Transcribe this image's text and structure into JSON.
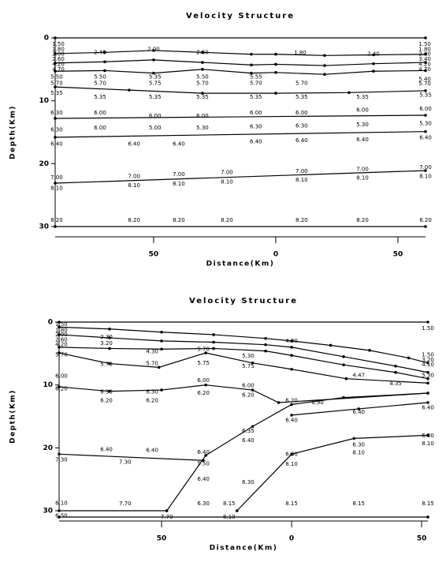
{
  "chart_data": [
    {
      "type": "line",
      "title": "Velocity Structure",
      "x_label": "Distance(Km)",
      "y_label": "Depth(Km)",
      "y_inverted": true,
      "markers": true,
      "xlim": [
        -90.3,
        61.3
      ],
      "xticks": [
        {
          "value": -50,
          "label": "50"
        },
        0,
        50
      ],
      "ylim": [
        0,
        30
      ],
      "yticks": [
        0,
        10,
        20,
        30
      ],
      "series": [
        {
          "color": "#000000",
          "x": [
            -90.3,
            61.3
          ],
          "values": [
            0,
            0
          ]
        },
        {
          "color": "#000000",
          "x": [
            -90.3,
            -70,
            -50,
            -30,
            -10,
            0,
            20,
            40,
            61.3
          ],
          "values": [
            2.5,
            2.3,
            2.0,
            2.3,
            2.6,
            2.6,
            2.8,
            2.7,
            2.6
          ]
        },
        {
          "color": "#000000",
          "x": [
            -90.3,
            -70,
            -50,
            -30,
            -10,
            0,
            20,
            40,
            61.3
          ],
          "values": [
            4.0,
            3.8,
            3.5,
            3.9,
            4.3,
            4.2,
            4.4,
            4.1,
            3.9
          ]
        },
        {
          "color": "#000000",
          "x": [
            -90.3,
            -70,
            -50,
            -30,
            -10,
            0,
            20,
            40,
            61.3
          ],
          "values": [
            5.3,
            5.2,
            5.6,
            5.0,
            5.6,
            5.5,
            5.8,
            5.3,
            5.2
          ]
        },
        {
          "color": "#000000",
          "x": [
            -90.3,
            -60,
            -30,
            0,
            30,
            61.3
          ],
          "values": [
            7.8,
            8.3,
            8.8,
            8.8,
            8.7,
            8.4
          ]
        },
        {
          "color": "#000000",
          "x": [
            -90.3,
            61.3
          ],
          "values": [
            12.8,
            12.3
          ]
        },
        {
          "color": "#000000",
          "x": [
            -90.3,
            61.3
          ],
          "values": [
            15.8,
            14.9
          ]
        },
        {
          "color": "#000000",
          "x": [
            -90.3,
            61.3
          ],
          "values": [
            23.1,
            21.1
          ]
        },
        {
          "color": "#000000",
          "x": [
            -90.3,
            61.3
          ],
          "values": [
            30,
            30
          ]
        }
      ],
      "annotations": [
        {
          "x": -89,
          "y": 1.0,
          "text": "1.50"
        },
        {
          "x": -89,
          "y": 1.8,
          "text": "1.80"
        },
        {
          "x": -89,
          "y": 2.6,
          "text": "2.00"
        },
        {
          "x": -89,
          "y": 3.4,
          "text": "2.60"
        },
        {
          "x": -89,
          "y": 4.2,
          "text": "4.20"
        },
        {
          "x": -89,
          "y": 5.0,
          "text": "4.70"
        },
        {
          "x": 61,
          "y": 1.0,
          "text": "1.50"
        },
        {
          "x": 61,
          "y": 1.8,
          "text": "1.80"
        },
        {
          "x": 61,
          "y": 2.6,
          "text": "2.00"
        },
        {
          "x": 61,
          "y": 3.4,
          "text": "3.40"
        },
        {
          "x": 61,
          "y": 4.2,
          "text": "4.20"
        },
        {
          "x": 61,
          "y": 5.0,
          "text": "4.70"
        },
        {
          "x": 61,
          "y": 6.6,
          "text": "5.40"
        },
        {
          "x": 61,
          "y": 7.3,
          "text": "5.70"
        },
        {
          "x": -50,
          "y": 1.8,
          "text": "2.00"
        },
        {
          "x": -72,
          "y": 2.3,
          "text": "2.40"
        },
        {
          "x": -30,
          "y": 2.3,
          "text": "2.60"
        },
        {
          "x": 10,
          "y": 2.4,
          "text": "1.80"
        },
        {
          "x": 40,
          "y": 2.6,
          "text": "2.40"
        },
        {
          "x": -89.7,
          "y": 6.2,
          "text": "5.50"
        },
        {
          "x": -71.9,
          "y": 6.2,
          "text": "5.50"
        },
        {
          "x": -49.4,
          "y": 6.2,
          "text": "5.35"
        },
        {
          "x": -30,
          "y": 6.2,
          "text": "5.50"
        },
        {
          "x": -8.1,
          "y": 6.2,
          "text": "5.55"
        },
        {
          "x": -89.7,
          "y": 7.2,
          "text": "5.70"
        },
        {
          "x": -71.9,
          "y": 7.2,
          "text": "5.70"
        },
        {
          "x": -49.4,
          "y": 7.2,
          "text": "5.75"
        },
        {
          "x": -30,
          "y": 7.2,
          "text": "5.70"
        },
        {
          "x": -8.1,
          "y": 7.2,
          "text": "5.70"
        },
        {
          "x": 10.6,
          "y": 7.2,
          "text": "5.70"
        },
        {
          "x": -89.7,
          "y": 8.8,
          "text": "5.35"
        },
        {
          "x": -71.9,
          "y": 9.4,
          "text": "5.35"
        },
        {
          "x": -49.4,
          "y": 9.4,
          "text": "5.35"
        },
        {
          "x": -30,
          "y": 9.4,
          "text": "5.35"
        },
        {
          "x": -8.1,
          "y": 9.4,
          "text": "5.35"
        },
        {
          "x": 10.6,
          "y": 9.4,
          "text": "5.35"
        },
        {
          "x": 35.5,
          "y": 9.4,
          "text": "5.35"
        },
        {
          "x": 61.3,
          "y": 9.1,
          "text": "5.35"
        },
        {
          "x": -89.7,
          "y": 11.9,
          "text": "6.30"
        },
        {
          "x": -71.9,
          "y": 11.9,
          "text": "6.00"
        },
        {
          "x": -49.4,
          "y": 12.4,
          "text": "6.00"
        },
        {
          "x": -30,
          "y": 12.4,
          "text": "6.00"
        },
        {
          "x": -8.1,
          "y": 11.9,
          "text": "6.00"
        },
        {
          "x": 10.6,
          "y": 11.9,
          "text": "6.00"
        },
        {
          "x": 35.5,
          "y": 11.5,
          "text": "6.00"
        },
        {
          "x": 61.3,
          "y": 11.3,
          "text": "6.00"
        },
        {
          "x": -89.7,
          "y": 14.6,
          "text": "6.30"
        },
        {
          "x": -71.9,
          "y": 14.3,
          "text": "6.00"
        },
        {
          "x": -49.4,
          "y": 14.3,
          "text": "5.00"
        },
        {
          "x": -30,
          "y": 14.3,
          "text": "5.30"
        },
        {
          "x": -8.1,
          "y": 14.1,
          "text": "6.30"
        },
        {
          "x": 10.6,
          "y": 14.0,
          "text": "6.30"
        },
        {
          "x": 35.5,
          "y": 13.8,
          "text": "5.30"
        },
        {
          "x": 61.3,
          "y": 13.6,
          "text": "5.30"
        },
        {
          "x": -89.7,
          "y": 16.9,
          "text": "6.40"
        },
        {
          "x": -58,
          "y": 16.9,
          "text": "6.40"
        },
        {
          "x": -39.7,
          "y": 16.9,
          "text": "6.40"
        },
        {
          "x": -8.1,
          "y": 16.5,
          "text": "6.40"
        },
        {
          "x": 10.6,
          "y": 16.3,
          "text": "6.40"
        },
        {
          "x": 35.5,
          "y": 16.2,
          "text": "6.40"
        },
        {
          "x": 61.3,
          "y": 15.9,
          "text": "6.40"
        },
        {
          "x": -89.7,
          "y": 22.2,
          "text": "7.00"
        },
        {
          "x": -58,
          "y": 22.0,
          "text": "7.00"
        },
        {
          "x": -39.7,
          "y": 21.7,
          "text": "7.00"
        },
        {
          "x": -20,
          "y": 21.4,
          "text": "7.00"
        },
        {
          "x": 10.6,
          "y": 21.2,
          "text": "7.00"
        },
        {
          "x": 35.5,
          "y": 20.9,
          "text": "7.00"
        },
        {
          "x": 61.3,
          "y": 20.6,
          "text": "7.00"
        },
        {
          "x": -89.7,
          "y": 23.9,
          "text": "8.10"
        },
        {
          "x": -58,
          "y": 23.5,
          "text": "8.10"
        },
        {
          "x": -39.7,
          "y": 23.2,
          "text": "8.10"
        },
        {
          "x": -20,
          "y": 22.9,
          "text": "8.10"
        },
        {
          "x": 10.6,
          "y": 22.6,
          "text": "8.10"
        },
        {
          "x": 35.5,
          "y": 22.3,
          "text": "8.10"
        },
        {
          "x": 61.3,
          "y": 22.0,
          "text": "8.10"
        },
        {
          "x": -89.7,
          "y": 29.0,
          "text": "8.20"
        },
        {
          "x": -58,
          "y": 29.0,
          "text": "8.20"
        },
        {
          "x": -39.7,
          "y": 29.0,
          "text": "8.20"
        },
        {
          "x": -20,
          "y": 29.0,
          "text": "8.20"
        },
        {
          "x": 10.6,
          "y": 29.0,
          "text": "8.20"
        },
        {
          "x": 35.5,
          "y": 29.0,
          "text": "8.20"
        },
        {
          "x": 61.3,
          "y": 29.0,
          "text": "8.20"
        }
      ]
    },
    {
      "type": "line",
      "title": "Velocity Structure",
      "x_label": "Distance(Km)",
      "y_label": "Depth(Km)",
      "y_inverted": true,
      "markers": true,
      "xlim": [
        -89.4,
        52.4
      ],
      "xticks": [
        {
          "value": -50,
          "label": "50"
        },
        0,
        50
      ],
      "ylim": [
        0,
        30
      ],
      "yticks": [
        0,
        10,
        20,
        30
      ],
      "series": [
        {
          "color": "#000000",
          "x": [
            -89.4,
            52.4
          ],
          "values": [
            0,
            0
          ]
        },
        {
          "color": "#000000",
          "x": [
            -89.4,
            -70,
            -50,
            -30,
            -10,
            0,
            15,
            30,
            45,
            52.4
          ],
          "values": [
            0.8,
            1.1,
            1.6,
            2.0,
            2.6,
            3.0,
            3.7,
            4.5,
            5.7,
            6.5
          ]
        },
        {
          "color": "#000000",
          "x": [
            -89.4,
            -70,
            -50,
            -30,
            -10,
            0,
            20,
            40,
            52.4
          ],
          "values": [
            2.0,
            2.5,
            3.0,
            3.2,
            3.6,
            4.0,
            5.5,
            7.0,
            8.0
          ]
        },
        {
          "color": "#000000",
          "x": [
            -89.4,
            -70,
            -50,
            -30,
            -10,
            0,
            20,
            40,
            52.4
          ],
          "values": [
            4.0,
            4.2,
            4.3,
            4.2,
            4.6,
            5.3,
            6.8,
            8.0,
            9.0
          ]
        },
        {
          "color": "#000000",
          "x": [
            -89.4,
            -70,
            -51,
            -33,
            -15,
            0,
            21,
            52.4
          ],
          "values": [
            4.9,
            6.6,
            7.2,
            4.9,
            6.5,
            7.5,
            9.0,
            9.7
          ]
        },
        {
          "color": "#000000",
          "x": [
            -89.4,
            -70,
            -50,
            -33,
            -15,
            -5,
            52.4
          ],
          "values": [
            10.3,
            11.0,
            10.8,
            10.0,
            10.8,
            12.8,
            11.3
          ]
        },
        {
          "color": "#000000",
          "x": [
            -48,
            -33,
            -15,
            0,
            20,
            52.4
          ],
          "values": [
            30,
            21.2,
            16.6,
            13.1,
            12.0,
            11.3
          ]
        },
        {
          "color": "#000000",
          "x": [
            0,
            25.8,
            52.4
          ],
          "values": [
            14.8,
            13.8,
            12.8
          ]
        },
        {
          "color": "#000000",
          "x": [
            -21,
            0,
            24,
            52.4
          ],
          "values": [
            30,
            21,
            18.5,
            18
          ]
        },
        {
          "color": "#000000",
          "x": [
            -89.4,
            -34
          ],
          "values": [
            21,
            22
          ]
        },
        {
          "color": "#000000",
          "x": [
            -89.4,
            -48
          ],
          "values": [
            30,
            30
          ]
        },
        {
          "color": "#000000",
          "x": [
            -89.4,
            52.4
          ],
          "values": [
            31,
            31
          ]
        }
      ],
      "annotations": [
        {
          "x": -88.5,
          "y": 0.4,
          "text": "1.50"
        },
        {
          "x": 52.4,
          "y": 1.0,
          "text": "1.50"
        },
        {
          "x": -88.5,
          "y": 1.3,
          "text": "1.80"
        },
        {
          "x": -88.5,
          "y": 2.0,
          "text": "2.00"
        },
        {
          "x": -88.5,
          "y": 2.8,
          "text": "2.60"
        },
        {
          "x": -88.5,
          "y": 3.6,
          "text": "4.20"
        },
        {
          "x": -88.5,
          "y": 5.2,
          "text": "5.70"
        },
        {
          "x": 52.4,
          "y": 5.2,
          "text": "1.50"
        },
        {
          "x": 52.4,
          "y": 6.0,
          "text": "3.20"
        },
        {
          "x": 52.4,
          "y": 6.8,
          "text": "4.10"
        },
        {
          "x": 52.4,
          "y": 8.5,
          "text": "5.30"
        },
        {
          "x": -71.2,
          "y": 2.4,
          "text": "2.30"
        },
        {
          "x": -71.2,
          "y": 3.4,
          "text": "3.20"
        },
        {
          "x": 0,
          "y": 3.0,
          "text": "4.00"
        },
        {
          "x": -71.2,
          "y": 6.7,
          "text": "5.70"
        },
        {
          "x": -53.6,
          "y": 6.6,
          "text": "5.70"
        },
        {
          "x": -33.9,
          "y": 6.5,
          "text": "5.75"
        },
        {
          "x": -16.7,
          "y": 7.0,
          "text": "5.75"
        },
        {
          "x": -53.6,
          "y": 4.7,
          "text": "4.30"
        },
        {
          "x": -33.9,
          "y": 4.3,
          "text": "5.70"
        },
        {
          "x": -16.7,
          "y": 5.4,
          "text": "5.30"
        },
        {
          "x": 25.8,
          "y": 8.5,
          "text": "4.47"
        },
        {
          "x": 40,
          "y": 9.8,
          "text": "4.35"
        },
        {
          "x": -88.5,
          "y": 8.6,
          "text": "6.00"
        },
        {
          "x": -88.5,
          "y": 10.6,
          "text": "6.20"
        },
        {
          "x": -71.2,
          "y": 11.1,
          "text": "6.30"
        },
        {
          "x": -71.2,
          "y": 12.5,
          "text": "6.20"
        },
        {
          "x": -53.6,
          "y": 11.1,
          "text": "6.30"
        },
        {
          "x": -53.6,
          "y": 12.5,
          "text": "6.20"
        },
        {
          "x": -33.9,
          "y": 9.3,
          "text": "6.00"
        },
        {
          "x": -33.9,
          "y": 11.3,
          "text": "6.20"
        },
        {
          "x": -16.7,
          "y": 10.1,
          "text": "6.00"
        },
        {
          "x": -16.7,
          "y": 11.6,
          "text": "6.20"
        },
        {
          "x": 0,
          "y": 12.5,
          "text": "6.20"
        },
        {
          "x": 10,
          "y": 12.8,
          "text": "6.90"
        },
        {
          "x": -71.2,
          "y": 20.3,
          "text": "6.40"
        },
        {
          "x": -53.6,
          "y": 20.4,
          "text": "6.40"
        },
        {
          "x": -33.9,
          "y": 20.7,
          "text": "6.40"
        },
        {
          "x": -16.7,
          "y": 18.8,
          "text": "6.40"
        },
        {
          "x": 0,
          "y": 15.6,
          "text": "6.40"
        },
        {
          "x": 25.8,
          "y": 14.3,
          "text": "6.40"
        },
        {
          "x": 52.4,
          "y": 13.6,
          "text": "6.40"
        },
        {
          "x": -88.5,
          "y": 21.9,
          "text": "7.30"
        },
        {
          "x": -64,
          "y": 22.3,
          "text": "7.30"
        },
        {
          "x": -16.7,
          "y": 17.3,
          "text": "6.35"
        },
        {
          "x": -16.7,
          "y": 25.5,
          "text": "6.30"
        },
        {
          "x": -33.9,
          "y": 25.0,
          "text": "6.40"
        },
        {
          "x": -33.9,
          "y": 22.5,
          "text": "5.50"
        },
        {
          "x": 0,
          "y": 21.0,
          "text": "6.30"
        },
        {
          "x": 25.8,
          "y": 19.5,
          "text": "6.30"
        },
        {
          "x": 52.4,
          "y": 18.1,
          "text": "6.30"
        },
        {
          "x": 0,
          "y": 22.6,
          "text": "8.10"
        },
        {
          "x": 25.8,
          "y": 20.8,
          "text": "8.10"
        },
        {
          "x": 52.4,
          "y": 19.3,
          "text": "8.10"
        },
        {
          "x": -88.5,
          "y": 28.8,
          "text": "6.10"
        },
        {
          "x": -64,
          "y": 28.9,
          "text": "7.70"
        },
        {
          "x": -33.9,
          "y": 28.9,
          "text": "6.30"
        },
        {
          "x": -24,
          "y": 28.9,
          "text": "8.15"
        },
        {
          "x": 0,
          "y": 28.9,
          "text": "8.15"
        },
        {
          "x": 25.8,
          "y": 28.9,
          "text": "8.15"
        },
        {
          "x": 52.4,
          "y": 28.9,
          "text": "8.15"
        },
        {
          "x": -88.5,
          "y": 30.8,
          "text": "6.50"
        },
        {
          "x": -48,
          "y": 31.0,
          "text": "7.70"
        },
        {
          "x": -24,
          "y": 31.0,
          "text": "8.10"
        }
      ]
    }
  ]
}
